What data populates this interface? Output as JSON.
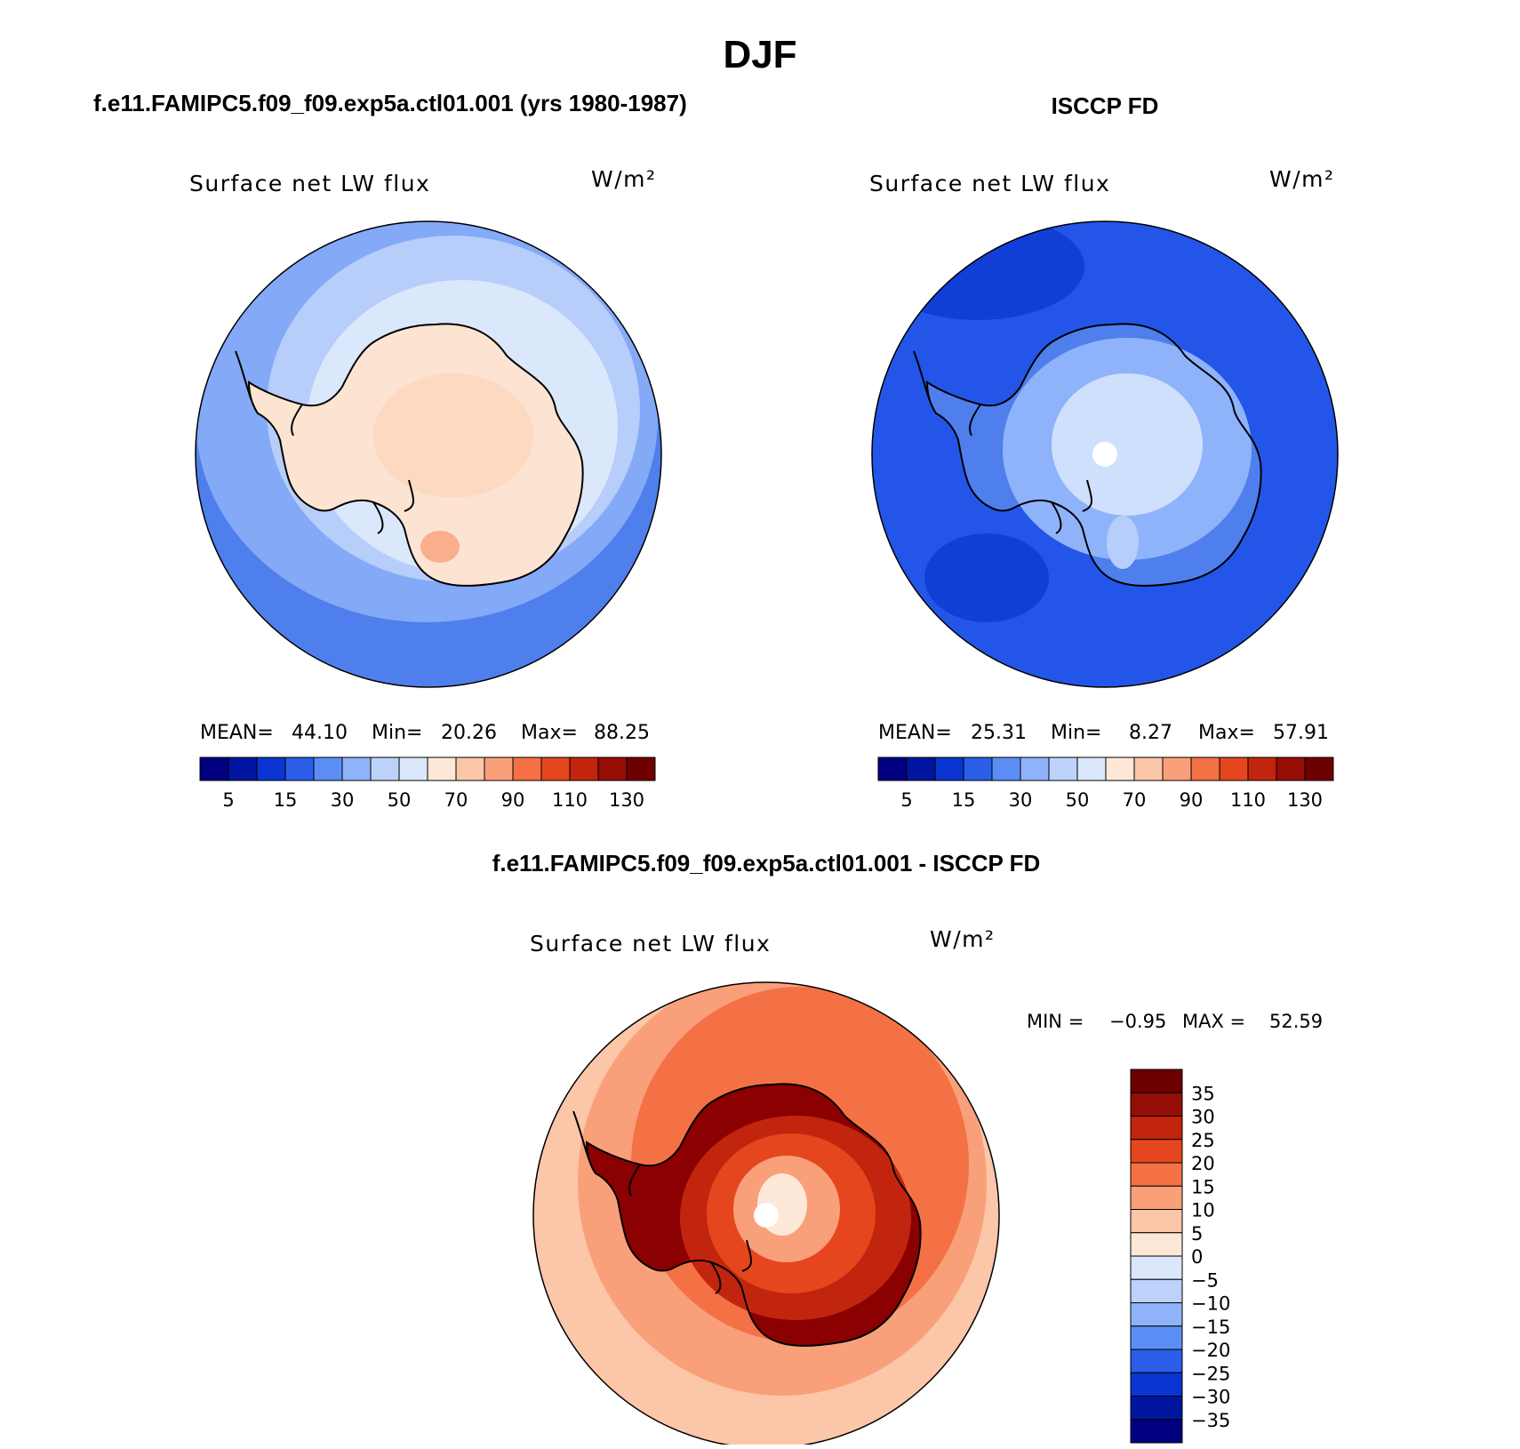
{
  "title": "DJF",
  "panels": [
    {
      "id": "model",
      "heading": "f.e11.FAMIPC5.f09_f09.exp5a.ctl01.001 (yrs 1980-1987)",
      "variable": "Surface net LW flux",
      "units": "W/m²",
      "stats": {
        "mean_label": "MEAN=",
        "mean": "44.10",
        "min_label": "Min=",
        "min": "20.26",
        "max_label": "Max=",
        "max": "88.25"
      }
    },
    {
      "id": "obs",
      "heading": "ISCCP FD",
      "variable": "Surface net LW flux",
      "units": "W/m²",
      "stats": {
        "mean_label": "MEAN=",
        "mean": "25.31",
        "min_label": "Min=",
        "min": "8.27",
        "max_label": "Max=",
        "max": "57.91"
      }
    },
    {
      "id": "diff",
      "heading": "f.e11.FAMIPC5.f09_f09.exp5a.ctl01.001 - ISCCP FD",
      "variable": "Surface net LW flux",
      "units": "W/m²",
      "minmax": {
        "min_label": "MIN =",
        "min": "−0.95",
        "max_label": "MAX =",
        "max": "52.59"
      }
    }
  ],
  "colorbar_abs": {
    "colors": [
      "#000080",
      "#0016a0",
      "#0a35d0",
      "#2a5de8",
      "#5b8ef5",
      "#8fb3fa",
      "#bcd2fb",
      "#dbe8fc",
      "#fde8d8",
      "#fcc6a8",
      "#f9a07b",
      "#f47146",
      "#e6461e",
      "#c2250d",
      "#960d05",
      "#6e0000"
    ],
    "labels": [
      "5",
      "15",
      "30",
      "50",
      "70",
      "90",
      "110",
      "130"
    ]
  },
  "colorbar_diff": {
    "colors": [
      "#6e0000",
      "#960d05",
      "#c2250d",
      "#e6461e",
      "#f47146",
      "#f9a07b",
      "#fcc6a8",
      "#fde8d8",
      "#dbe8fc",
      "#bcd2fb",
      "#8fb3fa",
      "#5b8ef5",
      "#2a5de8",
      "#0a35d0",
      "#0016a0",
      "#000080"
    ],
    "labels": [
      "35",
      "30",
      "25",
      "20",
      "15",
      "10",
      "5",
      "0",
      "−5",
      "−10",
      "−15",
      "−20",
      "−25",
      "−30",
      "−35"
    ]
  },
  "colors": {
    "model_ocean_outer": "#4f7fec",
    "model_ocean_mid": "#83a9f7",
    "model_ocean_inner": "#b7cdfa",
    "model_land": "#fde3d2",
    "model_land_warm": "#fccbb0",
    "obs_ocean_outer": "#2356e8",
    "obs_ocean_dark": "#0a35d0",
    "obs_land": "#4f7fec",
    "obs_land_mid": "#8fb3fa",
    "obs_land_inner": "#cfe0fc",
    "diff_ocean_outer": "#fcc6a8",
    "diff_ocean_mid": "#f9a07b",
    "diff_ocean_inner": "#f47146",
    "diff_land_rim": "#8b0000",
    "diff_land_mid": "#e6461e",
    "diff_land_inner": "#f9a07b",
    "diff_land_center": "#fde8d8"
  }
}
